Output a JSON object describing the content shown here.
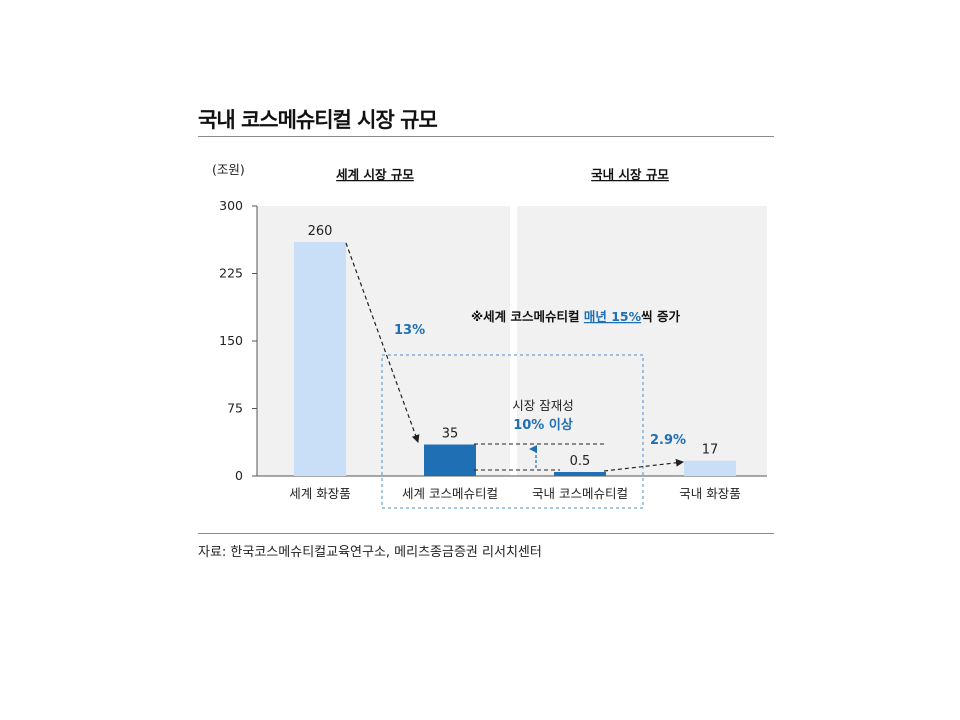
{
  "title": "국내 코스메슈티컬 시장 규모",
  "source": "자료: 한국코스메슈티컬교육연구소, 메리츠종금증권 리서치센터",
  "chart_data": {
    "type": "bar",
    "unit_label": "(조원)",
    "categories": [
      "세계 화장품",
      "세계 코스메슈티컬",
      "국내 코스메슈티컬",
      "국내 화장품"
    ],
    "values": [
      260,
      35,
      0.5,
      17
    ],
    "value_labels": [
      "260",
      "35",
      "0.5",
      "17"
    ],
    "bar_colors": [
      "#c9def7",
      "#1f6fb5",
      "#1f6fb5",
      "#c9def7"
    ],
    "ylim": [
      0,
      300
    ],
    "yticks": [
      0,
      75,
      150,
      225,
      300
    ],
    "grid": false,
    "sections": [
      "세계 시장 규모",
      "국내 시장 규모"
    ],
    "annotations": {
      "world_share": "13%",
      "domestic_share": "2.9%",
      "growth_note_prefix": "※세계 코스메슈티컬 ",
      "growth_note_highlight": "매년 15%",
      "growth_note_suffix": "씩 증가",
      "potential_label": "시장 잠재성",
      "potential_value": "10% 이상"
    },
    "colors": {
      "accent": "#1f6fb5",
      "light_bar": "#c9def7",
      "panel_bg": "#f1f1f1"
    }
  }
}
